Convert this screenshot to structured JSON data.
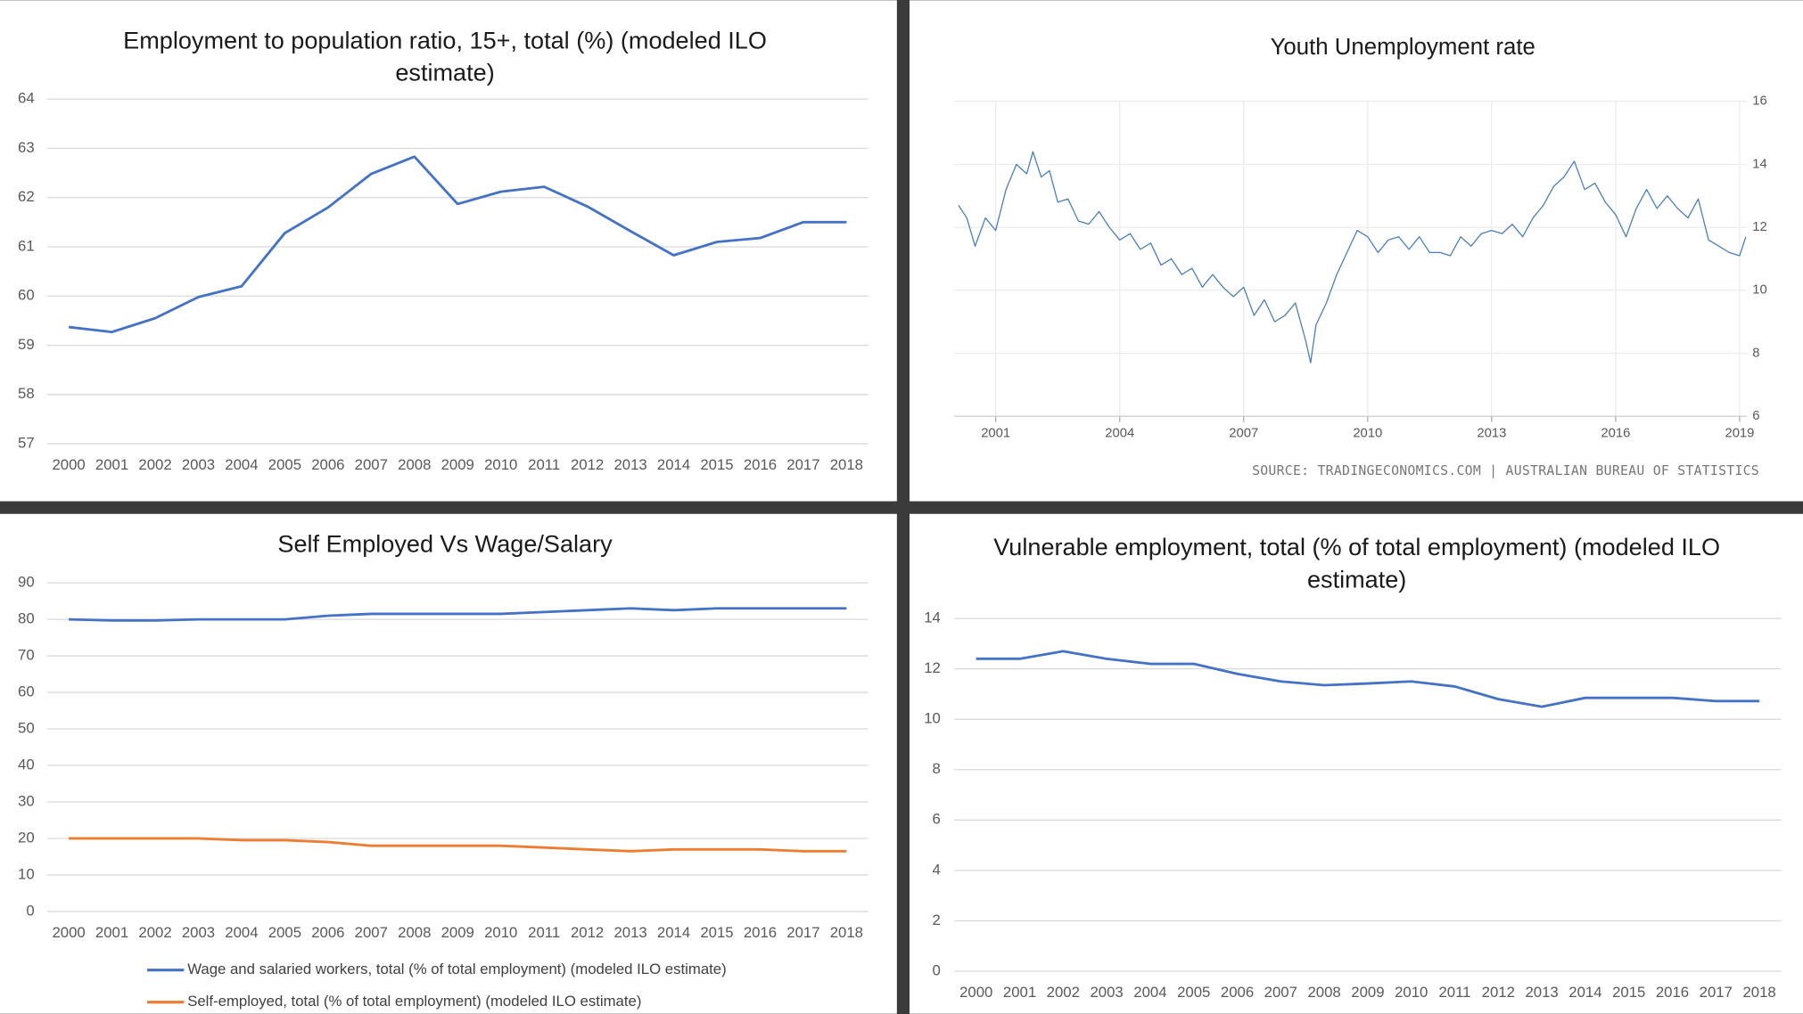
{
  "chart_data": [
    {
      "type": "line",
      "title": "Employment to population ratio, 15+, total (%) (modeled ILO estimate)",
      "categories": [
        "2000",
        "2001",
        "2002",
        "2003",
        "2004",
        "2005",
        "2006",
        "2007",
        "2008",
        "2009",
        "2010",
        "2011",
        "2012",
        "2013",
        "2014",
        "2015",
        "2016",
        "2017",
        "2018"
      ],
      "series": [
        {
          "name": null,
          "color": "#4472c4",
          "values": [
            59.37,
            59.27,
            59.55,
            59.98,
            60.2,
            61.28,
            61.8,
            62.48,
            62.83,
            61.87,
            62.12,
            62.22,
            61.82,
            61.32,
            60.83,
            61.1,
            61.18,
            61.5,
            61.5
          ]
        }
      ],
      "ylim": [
        57,
        64
      ],
      "yticks": [
        57,
        58,
        59,
        60,
        61,
        62,
        63,
        64
      ],
      "grid": true
    },
    {
      "type": "line",
      "title": "Youth Unemployment rate",
      "x": [
        2000.1,
        2000.3,
        2000.5,
        2000.75,
        2001.0,
        2001.25,
        2001.5,
        2001.75,
        2001.9,
        2002.1,
        2002.3,
        2002.5,
        2002.75,
        2003.0,
        2003.25,
        2003.5,
        2003.75,
        2004.0,
        2004.25,
        2004.5,
        2004.75,
        2005.0,
        2005.25,
        2005.5,
        2005.75,
        2006.0,
        2006.25,
        2006.5,
        2006.75,
        2007.0,
        2007.25,
        2007.5,
        2007.75,
        2008.0,
        2008.25,
        2008.5,
        2008.62,
        2008.75,
        2009.0,
        2009.25,
        2009.5,
        2009.75,
        2010.0,
        2010.25,
        2010.5,
        2010.75,
        2011.0,
        2011.25,
        2011.5,
        2011.75,
        2012.0,
        2012.25,
        2012.5,
        2012.75,
        2013.0,
        2013.25,
        2013.5,
        2013.75,
        2014.0,
        2014.25,
        2014.5,
        2014.75,
        2015.0,
        2015.25,
        2015.5,
        2015.75,
        2016.0,
        2016.25,
        2016.5,
        2016.75,
        2017.0,
        2017.25,
        2017.5,
        2017.75,
        2018.0,
        2018.25,
        2018.5,
        2018.75,
        2019.0,
        2019.15
      ],
      "series": [
        {
          "name": null,
          "color": "#4a7ebb",
          "values": [
            12.7,
            12.3,
            11.4,
            12.3,
            11.9,
            13.2,
            14.0,
            13.7,
            14.4,
            13.6,
            13.8,
            12.8,
            12.9,
            12.2,
            12.1,
            12.5,
            12.0,
            11.6,
            11.8,
            11.3,
            11.5,
            10.8,
            11.0,
            10.5,
            10.7,
            10.1,
            10.5,
            10.1,
            9.8,
            10.1,
            9.2,
            9.7,
            9.0,
            9.2,
            9.6,
            8.4,
            7.7,
            8.9,
            9.6,
            10.5,
            11.2,
            11.9,
            11.7,
            11.2,
            11.6,
            11.7,
            11.3,
            11.7,
            11.2,
            11.2,
            11.1,
            11.7,
            11.4,
            11.8,
            11.9,
            11.8,
            12.1,
            11.7,
            12.3,
            12.7,
            13.3,
            13.6,
            14.1,
            13.2,
            13.4,
            12.8,
            12.4,
            11.7,
            12.6,
            13.2,
            12.6,
            13.0,
            12.6,
            12.3,
            12.9,
            11.6,
            11.4,
            11.2,
            11.1,
            11.7
          ]
        }
      ],
      "xlim": [
        2000,
        2019.17
      ],
      "xticks": [
        2001,
        2004,
        2007,
        2010,
        2013,
        2016,
        2019
      ],
      "ylim": [
        6,
        16
      ],
      "yticks": [
        6,
        8,
        10,
        12,
        14,
        16
      ],
      "grid": true,
      "source": "SOURCE: TRADINGECONOMICS.COM | AUSTRALIAN BUREAU OF STATISTICS"
    },
    {
      "type": "line",
      "title": "Self Employed Vs Wage/Salary",
      "categories": [
        "2000",
        "2001",
        "2002",
        "2003",
        "2004",
        "2005",
        "2006",
        "2007",
        "2008",
        "2009",
        "2010",
        "2011",
        "2012",
        "2013",
        "2014",
        "2015",
        "2016",
        "2017",
        "2018"
      ],
      "series": [
        {
          "name": "Wage and salaried workers, total (% of total employment) (modeled ILO estimate)",
          "color": "#4472c4",
          "values": [
            80,
            79.7,
            79.7,
            80,
            80,
            80,
            81,
            81.5,
            81.5,
            81.5,
            81.5,
            82,
            82.5,
            83,
            82.5,
            83,
            83,
            83,
            83
          ]
        },
        {
          "name": "Self-employed, total (% of total employment) (modeled ILO estimate)",
          "color": "#ed7d31",
          "values": [
            20,
            20,
            20,
            20,
            19.5,
            19.5,
            19,
            18,
            18,
            18,
            18,
            17.5,
            17,
            16.5,
            17,
            17,
            17,
            16.5,
            16.5
          ]
        }
      ],
      "ylim": [
        0,
        90
      ],
      "yticks": [
        0,
        10,
        20,
        30,
        40,
        50,
        60,
        70,
        80,
        90
      ],
      "grid": true,
      "legend": "bottom"
    },
    {
      "type": "line",
      "title": "Vulnerable employment, total (% of total employment) (modeled ILO estimate)",
      "categories": [
        "2000",
        "2001",
        "2002",
        "2003",
        "2004",
        "2005",
        "2006",
        "2007",
        "2008",
        "2009",
        "2010",
        "2011",
        "2012",
        "2013",
        "2014",
        "2015",
        "2016",
        "2017",
        "2018"
      ],
      "series": [
        {
          "name": null,
          "color": "#4472c4",
          "values": [
            12.4,
            12.4,
            12.7,
            12.4,
            12.2,
            12.2,
            11.8,
            11.5,
            11.35,
            11.42,
            11.5,
            11.3,
            10.8,
            10.5,
            10.85,
            10.85,
            10.85,
            10.72,
            10.72
          ]
        }
      ],
      "ylim": [
        0,
        14
      ],
      "yticks": [
        0,
        2,
        4,
        6,
        8,
        10,
        12,
        14
      ],
      "grid": true
    }
  ]
}
